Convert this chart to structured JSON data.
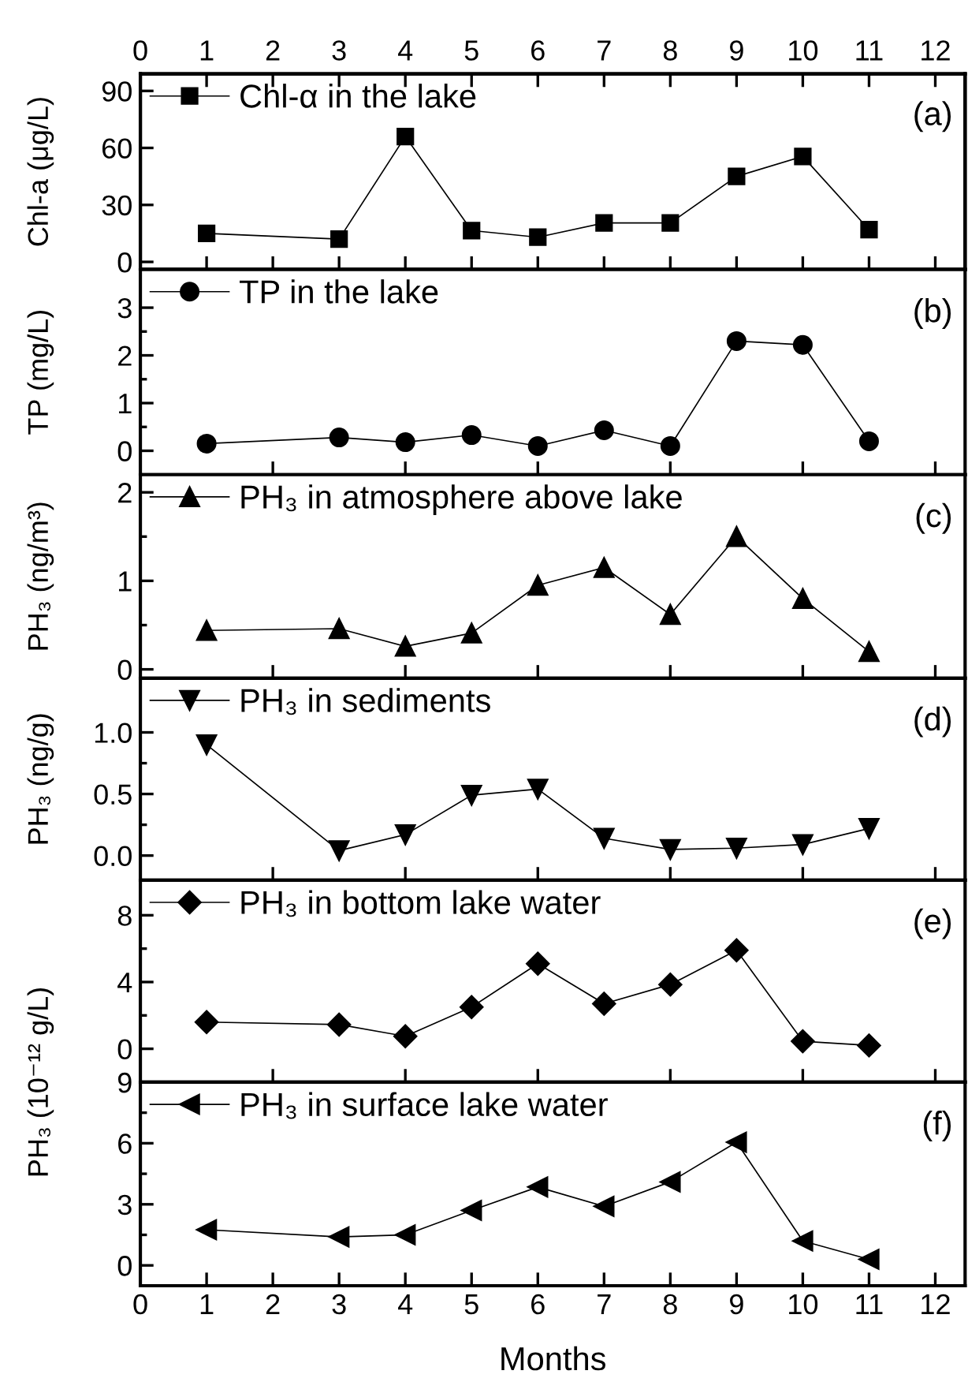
{
  "chart_data": [
    {
      "type": "line",
      "ylabel": "Chl-a (μg/L)",
      "x": [
        1,
        3,
        4,
        5,
        6,
        7,
        8,
        9,
        10,
        11
      ],
      "xlim": [
        0,
        12.45
      ],
      "x2lim": [
        0,
        12.45
      ],
      "x2ticks": [
        0,
        1,
        2,
        3,
        4,
        5,
        6,
        7,
        8,
        9,
        10,
        11,
        12
      ],
      "ylim": [
        -4,
        99
      ],
      "yticks": [
        0,
        30,
        60,
        90
      ],
      "tick_labels": "y",
      "legend": "top left",
      "marker": "square",
      "line_style": "solid",
      "annotations": [
        "(a)"
      ],
      "series": [
        {
          "name": "Chl-α in the lake",
          "color": "#000000",
          "values": [
            15,
            12,
            66,
            16.5,
            13,
            20.5,
            20.5,
            45,
            55.5,
            17
          ]
        }
      ]
    },
    {
      "type": "line",
      "ylabel": "TP (mg/L)",
      "x": [
        1,
        3,
        4,
        5,
        6,
        7,
        8,
        9,
        10,
        11
      ],
      "xlim": [
        0,
        12.45
      ],
      "ylim": [
        -0.5,
        3.8
      ],
      "yticks": [
        0,
        1,
        2,
        3
      ],
      "tick_labels": "y",
      "legend": "top left",
      "marker": "circle",
      "line_style": "solid",
      "annotations": [
        "(b)"
      ],
      "series": [
        {
          "name": "TP in the lake",
          "color": "#000000",
          "values": [
            0.15,
            0.28,
            0.18,
            0.33,
            0.1,
            0.43,
            0.1,
            2.3,
            2.22,
            0.2
          ]
        }
      ]
    },
    {
      "type": "line",
      "ylabel": "PH₃ (ng/m³)",
      "x": [
        1,
        3,
        4,
        5,
        6,
        7,
        8,
        9,
        10,
        11
      ],
      "xlim": [
        0,
        12.45
      ],
      "ylim": [
        -0.1,
        2.2
      ],
      "yticks": [
        0,
        1,
        2
      ],
      "tick_labels": "y",
      "legend": "top left",
      "marker": "triangle",
      "line_style": "solid",
      "annotations": [
        "(c)"
      ],
      "series": [
        {
          "name": "PH₃ in atmosphere above lake",
          "color": "#000000",
          "values": [
            0.44,
            0.46,
            0.26,
            0.41,
            0.95,
            1.15,
            0.62,
            1.5,
            0.8,
            0.2
          ]
        }
      ]
    },
    {
      "type": "line",
      "ylabel": "PH₃ (ng/g)",
      "x": [
        1,
        3,
        4,
        5,
        6,
        7,
        8,
        9,
        10,
        11
      ],
      "xlim": [
        0,
        12.45
      ],
      "ylim": [
        -0.2,
        1.44
      ],
      "yticks": [
        {
          "value": 0,
          "label": "0.0"
        },
        {
          "value": 0.5,
          "label": "0.5"
        },
        {
          "value": 1,
          "label": "1.0"
        }
      ],
      "tick_labels": "y",
      "legend": "top left",
      "marker": "triangle-down",
      "line_style": "solid",
      "annotations": [
        "(d)"
      ],
      "series": [
        {
          "name": "PH₃ in sediments",
          "color": "#000000",
          "values": [
            0.9,
            0.04,
            0.17,
            0.49,
            0.54,
            0.14,
            0.05,
            0.06,
            0.09,
            0.22
          ]
        }
      ]
    },
    {
      "type": "line",
      "x": [
        1,
        3,
        4,
        5,
        6,
        7,
        8,
        9,
        10,
        11
      ],
      "xlim": [
        0,
        12.45
      ],
      "ylim": [
        -2,
        10.1
      ],
      "yticks": [
        0,
        4,
        8
      ],
      "tick_labels": "y",
      "legend": "top left",
      "marker": "diamond",
      "line_style": "solid",
      "annotations": [
        "(e)"
      ],
      "series": [
        {
          "name": "PH₃ in bottom lake water",
          "color": "#000000",
          "values": [
            1.6,
            1.45,
            0.75,
            2.5,
            5.1,
            2.7,
            3.85,
            5.9,
            0.45,
            0.2
          ]
        }
      ]
    },
    {
      "type": "line",
      "xlabel": "Months",
      "ylabel": "PH₃ (10⁻¹² g/L)",
      "x": [
        1,
        3,
        4,
        5,
        6,
        7,
        8,
        9,
        10,
        11
      ],
      "xlim": [
        0,
        12.45
      ],
      "xticks": [
        0,
        1,
        2,
        3,
        4,
        5,
        6,
        7,
        8,
        9,
        10,
        11,
        12
      ],
      "ylim": [
        -1,
        9
      ],
      "yticks": [
        0,
        3,
        6,
        9
      ],
      "legend": "top left",
      "marker": "triangle-left",
      "line_style": "solid",
      "annotations": [
        "(f)"
      ],
      "series": [
        {
          "name": "PH₃ in surface lake water",
          "color": "#000000",
          "values": [
            1.75,
            1.4,
            1.5,
            2.7,
            3.85,
            2.9,
            4.1,
            6.05,
            1.2,
            0.3
          ]
        }
      ]
    }
  ]
}
